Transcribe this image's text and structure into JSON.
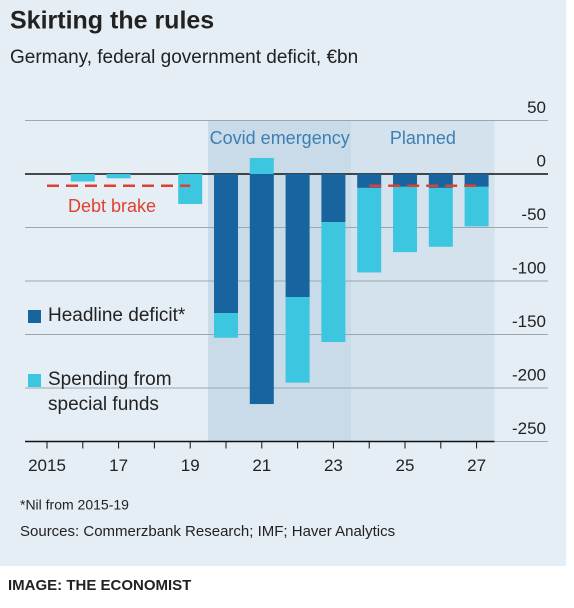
{
  "title": "Skirting the rules",
  "subtitle": "Germany, federal government deficit, €bn",
  "chart_data": {
    "type": "bar",
    "categories": [
      "2015",
      null,
      "17",
      null,
      "19",
      null,
      "21",
      null,
      "23",
      null,
      "25",
      null,
      "27"
    ],
    "series": [
      {
        "name": "Headline deficit*",
        "color": "#17649f",
        "values": [
          0,
          0,
          0,
          0,
          0,
          -130,
          -215,
          -115,
          -45,
          -13,
          -12,
          -13,
          -12
        ]
      },
      {
        "name": "Spending from special funds",
        "color": "#3cc6df",
        "values": [
          0,
          -7,
          -4,
          0,
          -28,
          -23,
          15,
          -80,
          -112,
          -79,
          -61,
          -55,
          -37
        ]
      }
    ],
    "debt_brake": {
      "name": "Debt brake",
      "color": "#e0402f",
      "values": [
        -11,
        -11,
        -11,
        -11,
        -11,
        null,
        null,
        null,
        null,
        -11,
        -11,
        -11,
        -11
      ]
    },
    "regions": [
      {
        "label": "Covid emergency"
      },
      {
        "label": "Planned"
      }
    ],
    "ylim": [
      -250,
      50
    ],
    "yticks": [
      50,
      0,
      -50,
      -100,
      -150,
      -200,
      -250
    ],
    "grid": true,
    "footnote": "*Nil from 2015-19",
    "source": "Sources: Commerzbank Research; IMF; Haver Analytics"
  },
  "credit": "IMAGE: THE ECONOMIST"
}
